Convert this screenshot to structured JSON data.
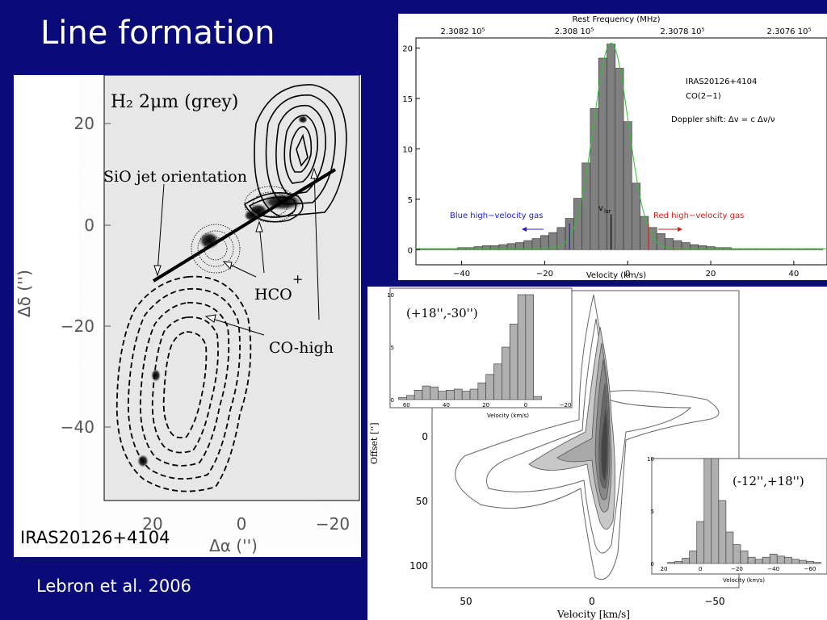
{
  "slide": {
    "title": "Line formation",
    "credit": "Lebron et al. 2006"
  },
  "map": {
    "object_label": "IRAS20126+4104",
    "heading": "H₂ 2μm (grey)",
    "ann_jet": "SiO jet orientation",
    "ann_hco": "HCO",
    "ann_hco_sup": "+",
    "ann_co": "CO-high",
    "y_ticks": [
      "20",
      "0",
      "−20",
      "−40"
    ],
    "x_ticks": [
      "20",
      "0",
      "−20"
    ],
    "xlabel": "Δα ('')",
    "ylabel": "Δδ ('')"
  },
  "spectrum": {
    "top_axis_label": "Rest Frequency (MHz)",
    "top_ticks": [
      "2.3082 10⁵",
      "2.308 10⁵",
      "2.3078 10⁵",
      "2.3076 10⁵"
    ],
    "source": "IRAS20126+4104",
    "line": "CO(2−1)",
    "doppler": "Doppler shift: Δv = c Δν/ν",
    "blue_label": "Blue high−velocity gas",
    "red_label": "Red high−velocity gas",
    "vlsr": "v",
    "vlsr_sub": "lsr",
    "xlabel": "Velocity (km/s)",
    "colors": {
      "blue": "#2020d0",
      "red": "#d02020",
      "fit": "#30c030",
      "bar": "#808080"
    }
  },
  "pv": {
    "ylabel": "Offset ['']",
    "xlabel": "Velocity [km/s]",
    "x_ticks": [
      "50",
      "0",
      "−50"
    ],
    "y_ticks": [
      "0",
      "50",
      "100"
    ],
    "inset1": {
      "label": "(+18'',-30'')",
      "xlabel": "Velocity (km/s)",
      "x_ticks": [
        "60",
        "40",
        "20",
        "0",
        "−20"
      ],
      "y_ticks": [
        "10",
        "5",
        "0"
      ]
    },
    "inset2": {
      "label": "(-12'',+18'')",
      "xlabel": "Velocity (km/s)",
      "x_ticks": [
        "20",
        "0",
        "−20",
        "−40",
        "−60"
      ],
      "y_ticks": [
        "10",
        "5",
        "0"
      ]
    }
  },
  "chart_data": [
    {
      "type": "bar",
      "xlabel": "Velocity (km/s)",
      "xlim": [
        -51,
        48
      ],
      "ylim": [
        -1.5,
        21
      ],
      "x_ticks": [
        -40,
        -20,
        0,
        20,
        40
      ],
      "y_ticks": [
        0,
        5,
        10,
        15,
        20
      ],
      "x": [
        -50,
        -48,
        -46,
        -44,
        -42,
        -40,
        -38,
        -36,
        -34,
        -32,
        -30,
        -28,
        -26,
        -24,
        -22,
        -20,
        -18,
        -16,
        -14,
        -12,
        -10,
        -8,
        -6,
        -4,
        -2,
        0,
        2,
        4,
        6,
        8,
        10,
        12,
        14,
        16,
        18,
        20,
        22,
        24,
        26,
        28,
        30,
        32,
        34,
        36,
        38,
        40,
        42,
        44,
        46
      ],
      "values": [
        0.1,
        0.1,
        0.1,
        0.1,
        0.1,
        0.2,
        0.2,
        0.3,
        0.4,
        0.4,
        0.5,
        0.6,
        0.7,
        0.9,
        1.1,
        1.4,
        1.7,
        2.2,
        3.1,
        5.1,
        8.6,
        14.0,
        19.0,
        20.4,
        18.0,
        12.7,
        6.6,
        3.3,
        2.2,
        1.6,
        1.1,
        0.9,
        0.7,
        0.5,
        0.4,
        0.3,
        0.2,
        0.2,
        0.1,
        0.1,
        0.1,
        0.1,
        0.1,
        0.1,
        0.1,
        0.1,
        0.1,
        0.1,
        0.1
      ]
    },
    {
      "type": "bar",
      "title": "(+18'',-30'')",
      "xlabel": "Velocity (km/s)",
      "xlim": [
        65,
        -22
      ],
      "ylim": [
        0,
        10
      ],
      "x": [
        62,
        58,
        54,
        50,
        46,
        42,
        38,
        34,
        30,
        26,
        22,
        18,
        14,
        10,
        6,
        2,
        -2,
        -6
      ],
      "values": [
        0.2,
        0.4,
        0.9,
        1.3,
        1.2,
        0.8,
        0.9,
        1.0,
        0.8,
        1.0,
        1.6,
        2.4,
        3.4,
        5.0,
        7.2,
        10,
        10,
        0.3
      ]
    },
    {
      "type": "bar",
      "title": "(-12'',+18'')",
      "xlabel": "Velocity (km/s)",
      "xlim": [
        24,
        -68
      ],
      "ylim": [
        0,
        10
      ],
      "x": [
        20,
        16,
        12,
        8,
        4,
        0,
        -4,
        -8,
        -12,
        -16,
        -20,
        -24,
        -28,
        -32,
        -36,
        -40,
        -44,
        -48,
        -52,
        -56,
        -60,
        -64
      ],
      "values": [
        0,
        0.1,
        0.2,
        0.5,
        1.2,
        4.0,
        10,
        10,
        6.0,
        3.0,
        1.8,
        1.2,
        0.6,
        0.4,
        0.6,
        0.9,
        0.7,
        0.6,
        0.4,
        0.3,
        0.2,
        0.1
      ]
    }
  ]
}
